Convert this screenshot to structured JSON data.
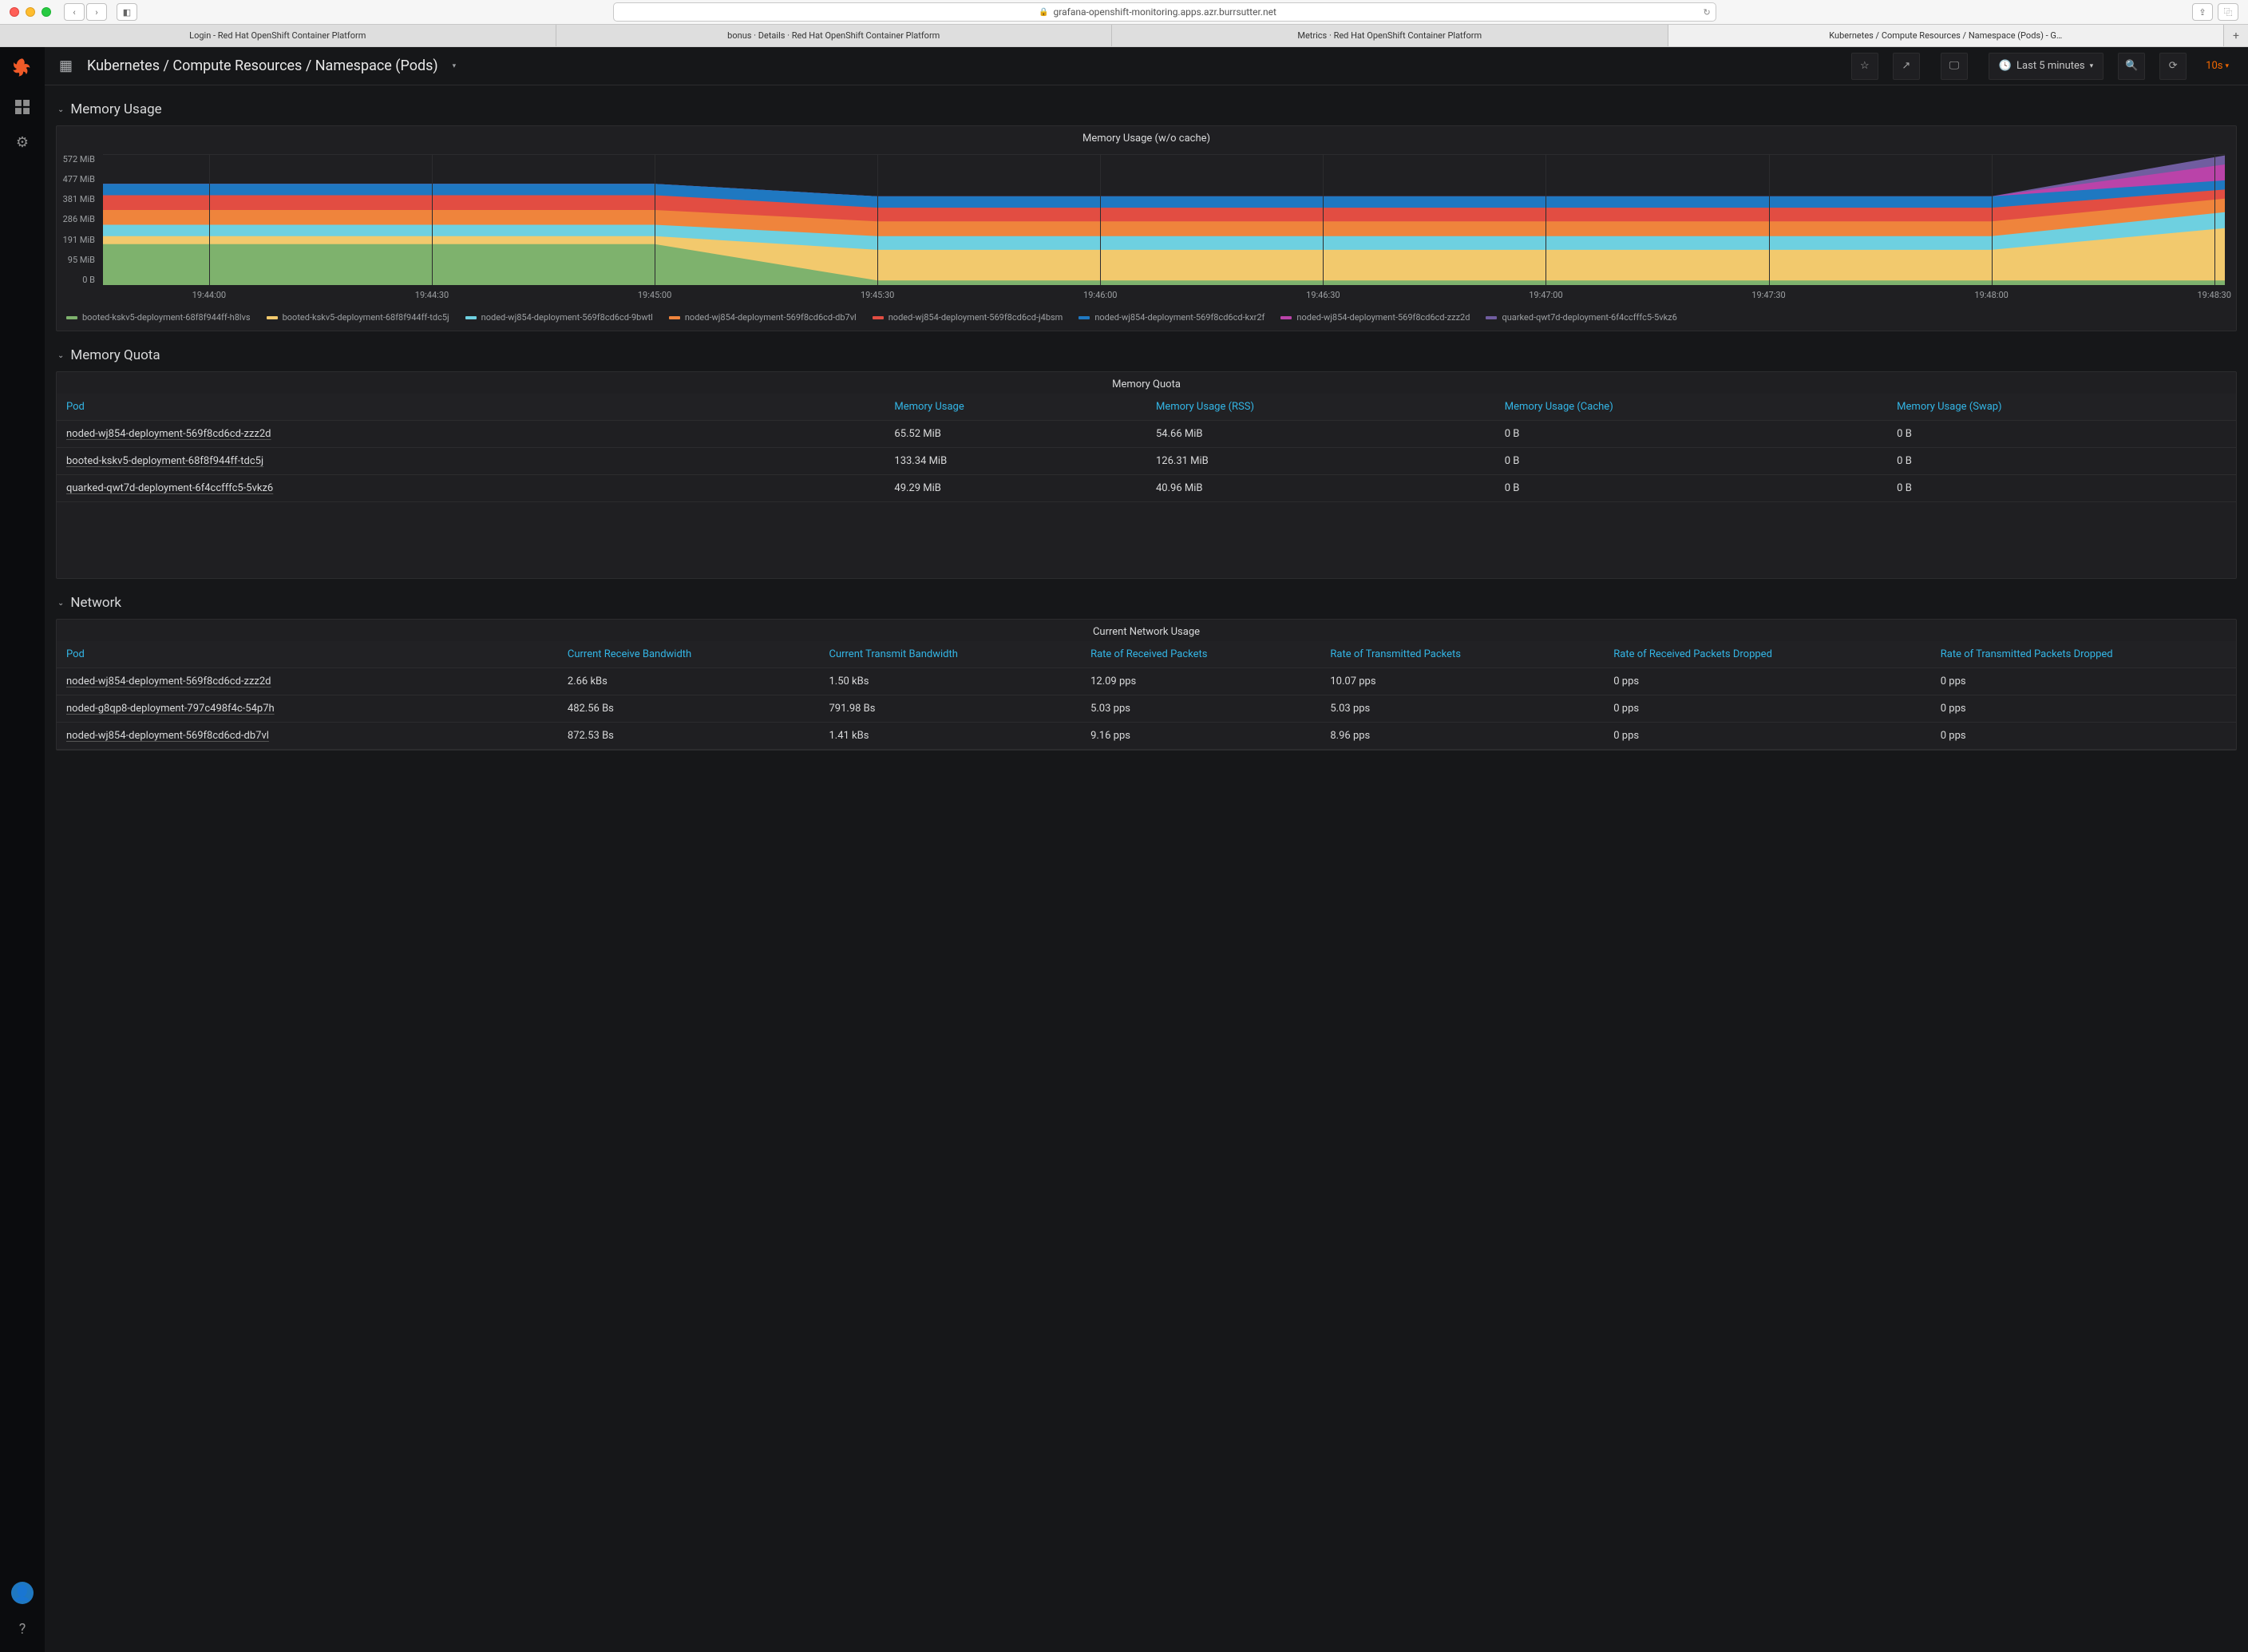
{
  "browser": {
    "url": "grafana-openshift-monitoring.apps.azr.burrsutter.net",
    "tabs": [
      "Login - Red Hat OpenShift Container Platform",
      "bonus · Details · Red Hat OpenShift Container Platform",
      "Metrics · Red Hat OpenShift Container Platform",
      "Kubernetes / Compute Resources / Namespace (Pods) - G…"
    ]
  },
  "dashboard": {
    "title": "Kubernetes / Compute Resources / Namespace (Pods)",
    "time_label": "Last 5 minutes",
    "refresh_interval": "10s"
  },
  "sections": {
    "memory_usage": {
      "title": "Memory Usage"
    },
    "memory_quota": {
      "title": "Memory Quota"
    },
    "network": {
      "title": "Network"
    }
  },
  "chart": {
    "title": "Memory Usage (w/o cache)",
    "type": "area-stacked",
    "background": "#1f1f22",
    "grid_color": "#2c2c2e",
    "tick_color": "#9da0a3",
    "tick_fontsize": 11,
    "ylim": [
      0,
      572
    ],
    "yticks": [
      "572 MiB",
      "477 MiB",
      "381 MiB",
      "286 MiB",
      "191 MiB",
      "95 MiB",
      "0 B"
    ],
    "xticks": [
      "19:44:00",
      "19:44:30",
      "19:45:00",
      "19:45:30",
      "19:46:00",
      "19:46:30",
      "19:47:00",
      "19:47:30",
      "19:48:00",
      "19:48:30"
    ],
    "xtick_pos": [
      5,
      15.5,
      26,
      36.5,
      47,
      57.5,
      68,
      78.5,
      89,
      99.5
    ],
    "series": [
      {
        "label": "booted-kskv5-deployment-68f8f944ff-h8lvs",
        "color": "#7eb26d",
        "cum": [
          180,
          180,
          180,
          20,
          20,
          20,
          20,
          20,
          20,
          20
        ]
      },
      {
        "label": "booted-kskv5-deployment-68f8f944ff-tdc5j",
        "color": "#f2c96d",
        "cum": [
          215,
          215,
          215,
          155,
          155,
          155,
          155,
          155,
          155,
          250
        ]
      },
      {
        "label": "noded-wj854-deployment-569f8cd6cd-9bwtl",
        "color": "#6ed0e0",
        "cum": [
          265,
          265,
          265,
          215,
          215,
          215,
          215,
          215,
          215,
          320
        ]
      },
      {
        "label": "noded-wj854-deployment-569f8cd6cd-db7vl",
        "color": "#ef843c",
        "cum": [
          330,
          330,
          330,
          280,
          280,
          280,
          280,
          280,
          280,
          380
        ]
      },
      {
        "label": "noded-wj854-deployment-569f8cd6cd-j4bsm",
        "color": "#e24d42",
        "cum": [
          395,
          395,
          395,
          340,
          340,
          340,
          340,
          340,
          340,
          420
        ]
      },
      {
        "label": "noded-wj854-deployment-569f8cd6cd-kxr2f",
        "color": "#1f78c1",
        "cum": [
          445,
          445,
          445,
          390,
          390,
          390,
          390,
          390,
          390,
          460
        ]
      },
      {
        "label": "noded-wj854-deployment-569f8cd6cd-zzz2d",
        "color": "#ba43a9",
        "cum": [
          445,
          445,
          445,
          390,
          390,
          390,
          390,
          390,
          390,
          530
        ]
      },
      {
        "label": "quarked-qwt7d-deployment-6f4ccfffc5-5vkz6",
        "color": "#705da0",
        "cum": [
          445,
          445,
          445,
          390,
          390,
          390,
          390,
          390,
          390,
          570
        ]
      }
    ],
    "x_pts": [
      0,
      18,
      26,
      36.5,
      47,
      68,
      75,
      85,
      89,
      100
    ]
  },
  "memory_quota_table": {
    "title": "Memory Quota",
    "columns": [
      "Pod",
      "Memory Usage",
      "Memory Usage (RSS)",
      "Memory Usage (Cache)",
      "Memory Usage (Swap)"
    ],
    "rows": [
      [
        "noded-wj854-deployment-569f8cd6cd-zzz2d",
        "65.52 MiB",
        "54.66 MiB",
        "0 B",
        "0 B"
      ],
      [
        "booted-kskv5-deployment-68f8f944ff-tdc5j",
        "133.34 MiB",
        "126.31 MiB",
        "0 B",
        "0 B"
      ],
      [
        "quarked-qwt7d-deployment-6f4ccfffc5-5vkz6",
        "49.29 MiB",
        "40.96 MiB",
        "0 B",
        "0 B"
      ]
    ]
  },
  "network_table": {
    "title": "Current Network Usage",
    "columns": [
      "Pod",
      "Current Receive Bandwidth",
      "Current Transmit Bandwidth",
      "Rate of Received Packets",
      "Rate of Transmitted Packets",
      "Rate of Received Packets Dropped",
      "Rate of Transmitted Packets Dropped"
    ],
    "rows": [
      [
        "noded-wj854-deployment-569f8cd6cd-zzz2d",
        "2.66 kBs",
        "1.50 kBs",
        "12.09 pps",
        "10.07 pps",
        "0 pps",
        "0 pps"
      ],
      [
        "noded-g8qp8-deployment-797c498f4c-54p7h",
        "482.56 Bs",
        "791.98 Bs",
        "5.03 pps",
        "5.03 pps",
        "0 pps",
        "0 pps"
      ],
      [
        "noded-wj854-deployment-569f8cd6cd-db7vl",
        "872.53 Bs",
        "1.41 kBs",
        "9.16 pps",
        "8.96 pps",
        "0 pps",
        "0 pps"
      ]
    ]
  }
}
